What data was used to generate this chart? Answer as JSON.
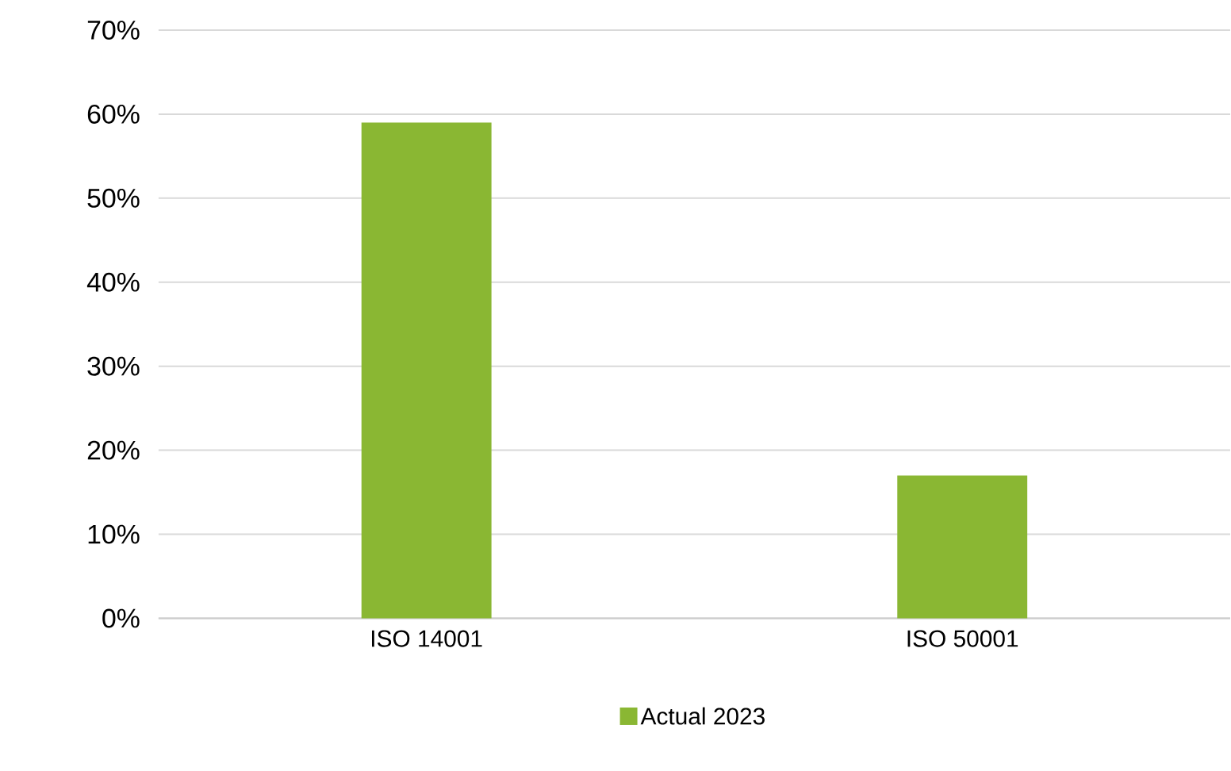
{
  "chart_data": {
    "type": "bar",
    "categories": [
      "ISO 14001",
      "ISO 50001"
    ],
    "series": [
      {
        "name": "Actual 2023",
        "color": "#8ab733",
        "values": [
          59,
          17
        ]
      }
    ],
    "ylim": [
      0,
      70
    ],
    "yticks": [
      {
        "value": 0,
        "label": "0%"
      },
      {
        "value": 10,
        "label": "10%"
      },
      {
        "value": 20,
        "label": "20%"
      },
      {
        "value": 30,
        "label": "30%"
      },
      {
        "value": 40,
        "label": "40%"
      },
      {
        "value": 50,
        "label": "50%"
      },
      {
        "value": 60,
        "label": "60%"
      },
      {
        "value": 70,
        "label": "70%"
      }
    ],
    "grid": "y",
    "legend": "bottom"
  }
}
